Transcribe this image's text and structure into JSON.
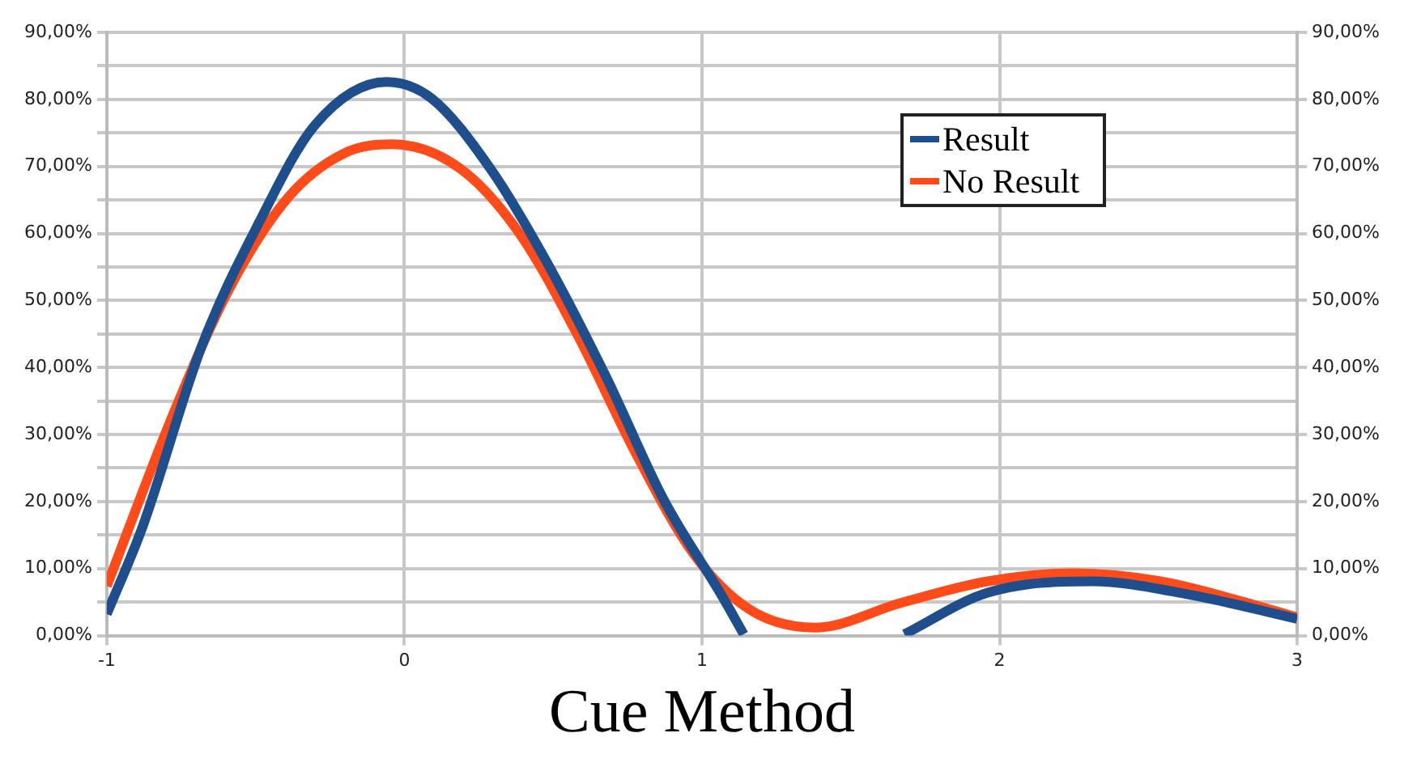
{
  "chart_data": {
    "type": "line",
    "xlabel": "Cue Method",
    "xlim": [
      -1,
      3
    ],
    "xticks": [
      -1,
      0,
      1,
      2,
      3
    ],
    "ylim": [
      0,
      90
    ],
    "yticks": [
      {
        "value": 0,
        "label": "0,00%"
      },
      {
        "value": 5,
        "label": null
      },
      {
        "value": 10,
        "label": "10,00%"
      },
      {
        "value": 15,
        "label": null
      },
      {
        "value": 20,
        "label": "20,00%"
      },
      {
        "value": 25,
        "label": null
      },
      {
        "value": 30,
        "label": "30,00%"
      },
      {
        "value": 35,
        "label": null
      },
      {
        "value": 40,
        "label": "40,00%"
      },
      {
        "value": 45,
        "label": null
      },
      {
        "value": 50,
        "label": "50,00%"
      },
      {
        "value": 55,
        "label": null
      },
      {
        "value": 60,
        "label": "60,00%"
      },
      {
        "value": 65,
        "label": null
      },
      {
        "value": 70,
        "label": "70,00%"
      },
      {
        "value": 75,
        "label": null
      },
      {
        "value": 80,
        "label": "80,00%"
      },
      {
        "value": 85,
        "label": null
      },
      {
        "value": 90,
        "label": "90,00%"
      }
    ],
    "y2lim": [
      0,
      90
    ],
    "y2ticks": [
      {
        "value": 0,
        "label": "0,00%"
      },
      {
        "value": 10,
        "label": "10,00%"
      },
      {
        "value": 20,
        "label": "20,00%"
      },
      {
        "value": 30,
        "label": "30,00%"
      },
      {
        "value": 40,
        "label": "40,00%"
      },
      {
        "value": 50,
        "label": "50,00%"
      },
      {
        "value": 60,
        "label": "60,00%"
      },
      {
        "value": 70,
        "label": "70,00%"
      },
      {
        "value": 80,
        "label": "80,00%"
      },
      {
        "value": 90,
        "label": "90,00%"
      }
    ],
    "grid": true,
    "legend": "top right",
    "series": [
      {
        "name": "Result",
        "color": "#1f4e8c",
        "x": [
          -1,
          -0.88,
          -0.68,
          -0.49,
          -0.3,
          -0.06,
          0.09,
          0.29,
          0.48,
          0.68,
          0.87,
          1.07,
          1.14,
          1.4,
          1.68,
          1.96,
          2.31,
          2.64,
          3
        ],
        "values": [
          3.2,
          16.2,
          43.3,
          61.5,
          76.2,
          82.6,
          80.2,
          69.6,
          55.6,
          38.4,
          20.4,
          5.7,
          0.2,
          null,
          0.2,
          6.4,
          8.1,
          6.1,
          2.5
        ]
      },
      {
        "name": "No Result",
        "color": "#ff4a1a",
        "x": [
          -1,
          -0.78,
          -0.59,
          -0.39,
          -0.2,
          -0.04,
          0.19,
          0.39,
          0.58,
          0.78,
          0.97,
          1.16,
          1.38,
          1.67,
          1.96,
          2.25,
          2.54,
          2.83,
          3
        ],
        "values": [
          7.4,
          32.7,
          51.6,
          65.4,
          72,
          73.3,
          69.6,
          59.8,
          45,
          27,
          12.3,
          3.9,
          1.2,
          4.9,
          8.1,
          9.3,
          8.1,
          4.9,
          2.7
        ]
      }
    ]
  }
}
